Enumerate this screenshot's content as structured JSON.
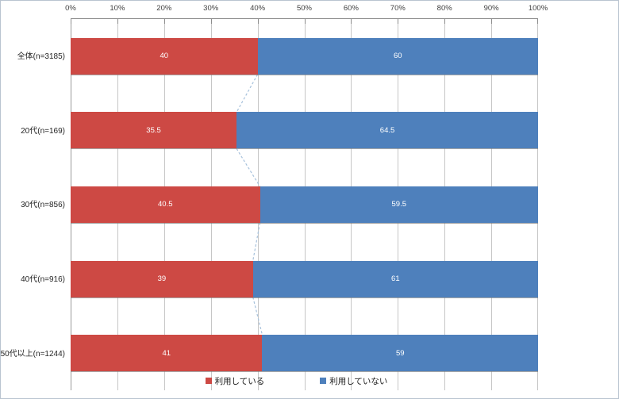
{
  "chart_data": {
    "type": "bar",
    "orientation": "horizontal",
    "stacked": true,
    "title": "",
    "categories": [
      "全体(n=3185)",
      "20代(n=169)",
      "30代(n=856)",
      "40代(n=916)",
      "50代以上(n=1244)"
    ],
    "series": [
      {
        "name": "利用している",
        "color": "#cd4944",
        "values": [
          40,
          35.5,
          40.5,
          39,
          41
        ]
      },
      {
        "name": "利用していない",
        "color": "#4e80bc",
        "values": [
          60,
          64.5,
          59.5,
          61,
          59
        ]
      }
    ],
    "x_axis": {
      "position": "top",
      "min": 0,
      "max": 100,
      "ticks": [
        "0%",
        "10%",
        "20%",
        "30%",
        "40%",
        "50%",
        "60%",
        "70%",
        "80%",
        "90%",
        "100%"
      ]
    },
    "grid": true,
    "legend_position": "bottom",
    "series_lines": true,
    "series_line_color": "#a6c1dc",
    "data_label_color": "#ffffff"
  }
}
